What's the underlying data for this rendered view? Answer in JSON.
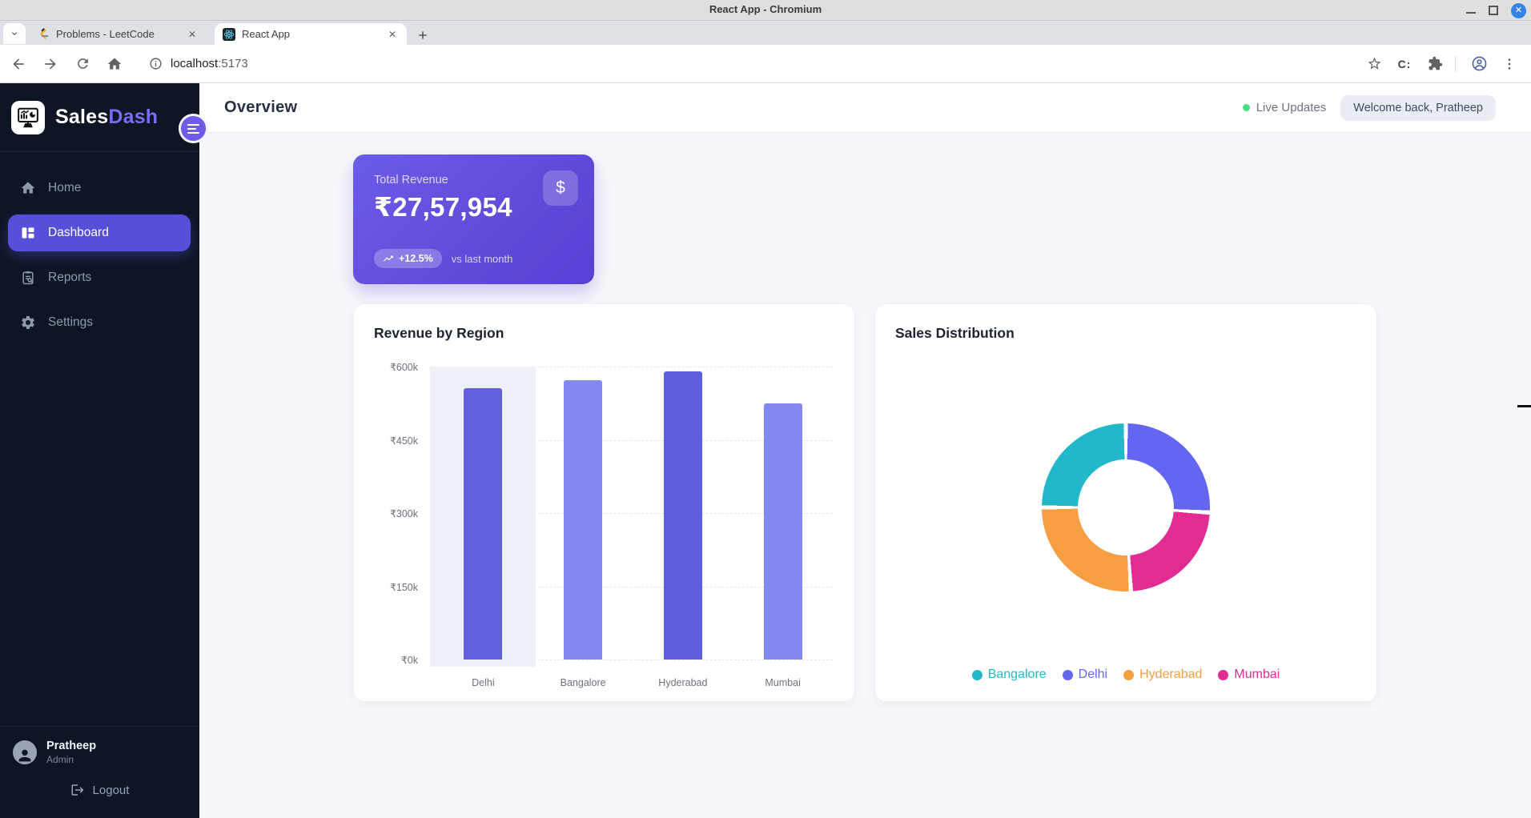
{
  "browser": {
    "window_title": "React App - Chromium",
    "tabs": [
      {
        "label": "Problems - LeetCode",
        "active": false
      },
      {
        "label": "React App",
        "active": true
      }
    ],
    "url_host": "localhost",
    "url_port": ":5173",
    "extension_label": "C:"
  },
  "sidebar": {
    "brand_part1": "Sales",
    "brand_part2": "Dash",
    "nav": [
      {
        "label": "Home",
        "active": false
      },
      {
        "label": "Dashboard",
        "active": true
      },
      {
        "label": "Reports",
        "active": false
      },
      {
        "label": "Settings",
        "active": false
      }
    ],
    "user": {
      "name": "Pratheep",
      "role": "Admin"
    },
    "logout_label": "Logout"
  },
  "header": {
    "title": "Overview",
    "live_label": "Live Updates",
    "welcome_badge": "Welcome back, Pratheep"
  },
  "revenue_card": {
    "label": "Total Revenue",
    "value": "₹27,57,954",
    "currency_icon": "$",
    "delta": "+12.5%",
    "delta_note": "vs last month"
  },
  "chart_data": [
    {
      "type": "bar",
      "title": "Revenue by Region",
      "categories": [
        "Delhi",
        "Bangalore",
        "Hyderabad",
        "Mumbai"
      ],
      "values": [
        555000,
        572000,
        590000,
        524000
      ],
      "bar_colors": [
        "#6361de",
        "#8289ee",
        "#5f5edd",
        "#8289ee"
      ],
      "ylim": [
        0,
        600000
      ],
      "y_tick_labels": [
        "₹600k",
        "₹450k",
        "₹300k",
        "₹150k",
        "₹0k"
      ],
      "grid": "horizontal-dashed",
      "highlighted_category_index": 0,
      "xlabel": "",
      "ylabel": ""
    },
    {
      "type": "pie",
      "subtype": "doughnut",
      "title": "Sales Distribution",
      "segments_clockwise_from_top": [
        {
          "label": "Delhi",
          "percent": 26,
          "color": "#6366f1"
        },
        {
          "label": "Mumbai",
          "percent": 23,
          "color": "#e32b94"
        },
        {
          "label": "Hyderabad",
          "percent": 26,
          "color": "#f59e42"
        },
        {
          "label": "Bangalore",
          "percent": 25,
          "color": "#21b9c9"
        }
      ],
      "legend": [
        {
          "label": "Bangalore",
          "color": "#21b9c9"
        },
        {
          "label": "Delhi",
          "color": "#6366f1"
        },
        {
          "label": "Hyderabad",
          "color": "#f59e42"
        },
        {
          "label": "Mumbai",
          "color": "#e32b94"
        }
      ],
      "legend_position": "bottom"
    }
  ]
}
